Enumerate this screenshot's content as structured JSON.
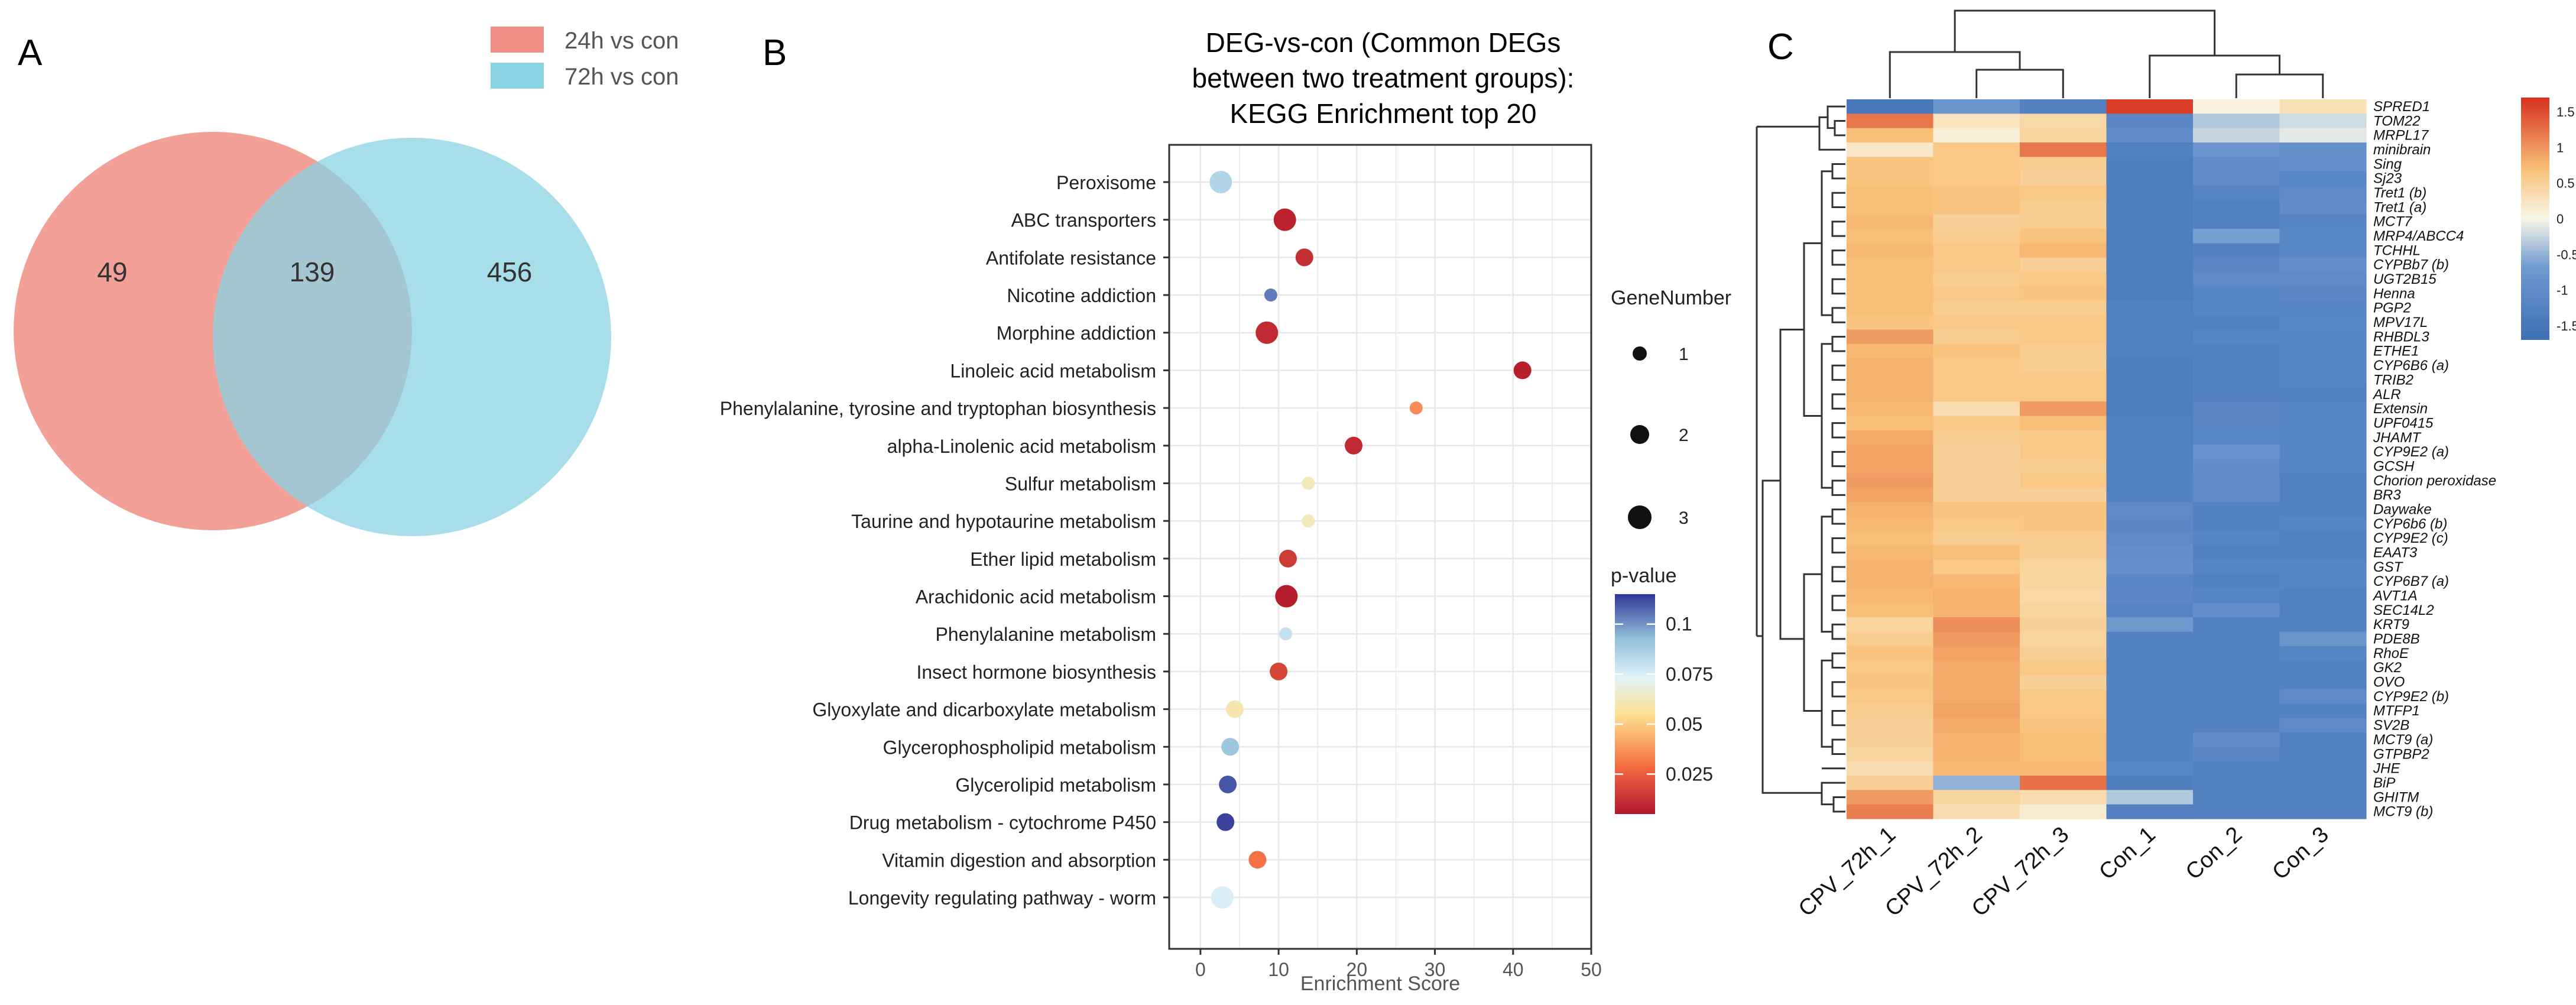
{
  "panels": {
    "A": {
      "label": "A",
      "legend": [
        {
          "name": "24h vs con",
          "color": "#f08f86"
        },
        {
          "name": "72h vs con",
          "color": "#8ad3e3"
        }
      ],
      "counts": {
        "only_left": "49",
        "intersection": "139",
        "only_right": "456"
      }
    },
    "B": {
      "label": "B"
    },
    "C": {
      "label": "C"
    }
  },
  "chart_data": [
    {
      "type": "venn",
      "sets": [
        "24h vs con",
        "72h vs con"
      ],
      "values": {
        "24h vs con only": 49,
        "both": 139,
        "72h vs con only": 456
      }
    },
    {
      "type": "scatter",
      "title": [
        "DEG-vs-con (Common DEGs",
        "between two treatment groups):",
        "KEGG Enrichment top 20"
      ],
      "xlabel": "Enrichment Score",
      "xlim": [
        -4,
        50
      ],
      "xticks": [
        0,
        10,
        20,
        30,
        40,
        50
      ],
      "size_legend": {
        "title": "GeneNumber",
        "values": [
          1,
          2,
          3
        ]
      },
      "color_legend": {
        "title": "p-value",
        "ticks": [
          "0.1",
          "0.075",
          "0.05",
          "0.025"
        ],
        "range": [
          0.005,
          0.115
        ]
      },
      "categories": [
        "Peroxisome",
        "ABC transporters",
        "Antifolate resistance",
        "Nicotine addiction",
        "Morphine addiction",
        "Linoleic acid metabolism",
        "Phenylalanine, tyrosine and tryptophan biosynthesis",
        "alpha-Linolenic acid metabolism",
        "Sulfur metabolism",
        "Taurine and hypotaurine metabolism",
        "Ether lipid metabolism",
        "Arachidonic acid metabolism",
        "Phenylalanine metabolism",
        "Insect hormone biosynthesis",
        "Glyoxylate and dicarboxylate metabolism",
        "Glycerophospholipid metabolism",
        "Glycerolipid metabolism",
        "Drug metabolism - cytochrome P450",
        "Vitamin digestion and absorption",
        "Longevity regulating pathway - worm"
      ],
      "points": [
        {
          "x": 2.6,
          "gene": 3,
          "p": 0.085
        },
        {
          "x": 10.8,
          "gene": 3,
          "p": 0.008
        },
        {
          "x": 13.3,
          "gene": 2,
          "p": 0.012
        },
        {
          "x": 9.0,
          "gene": 1,
          "p": 0.104
        },
        {
          "x": 8.5,
          "gene": 3,
          "p": 0.01
        },
        {
          "x": 41.2,
          "gene": 2,
          "p": 0.007
        },
        {
          "x": 27.6,
          "gene": 1,
          "p": 0.036
        },
        {
          "x": 19.6,
          "gene": 2,
          "p": 0.01
        },
        {
          "x": 13.8,
          "gene": 1,
          "p": 0.062
        },
        {
          "x": 13.8,
          "gene": 1,
          "p": 0.062
        },
        {
          "x": 11.2,
          "gene": 2,
          "p": 0.015
        },
        {
          "x": 11.0,
          "gene": 3,
          "p": 0.006
        },
        {
          "x": 10.9,
          "gene": 1,
          "p": 0.08
        },
        {
          "x": 10.0,
          "gene": 2,
          "p": 0.018
        },
        {
          "x": 4.4,
          "gene": 2,
          "p": 0.06
        },
        {
          "x": 3.8,
          "gene": 2,
          "p": 0.09
        },
        {
          "x": 3.5,
          "gene": 2,
          "p": 0.11
        },
        {
          "x": 3.2,
          "gene": 2,
          "p": 0.113
        },
        {
          "x": 7.3,
          "gene": 2,
          "p": 0.03
        },
        {
          "x": 2.8,
          "gene": 3,
          "p": 0.075
        }
      ]
    },
    {
      "type": "heatmap",
      "columns": [
        "CPV_72h_1",
        "CPV_72h_2",
        "CPV_72h_3",
        "Con_1",
        "Con_2",
        "Con_3"
      ],
      "rows": [
        "SPRED1",
        "TOM22",
        "MRPL17",
        "minibrain",
        "Sing",
        "Sj23",
        "Tret1 (b)",
        "Tret1 (a)",
        "MCT7",
        "MRP4/ABCC4",
        "TCHHL",
        "CYPBb7 (b)",
        "UGT2B15",
        "Henna",
        "PGP2",
        "MPV17L",
        "RHBDL3",
        "ETHE1",
        "CYP6B6 (a)",
        "TRIB2",
        "ALR",
        "Extensin",
        "UPF0415",
        "JHAMT",
        "CYP9E2 (a)",
        "GCSH",
        "Chorion peroxidase",
        "BR3",
        "Daywake",
        "CYP6b6 (b)",
        "CYP9E2 (c)",
        "EAAT3",
        "GST",
        "CYP6B7 (a)",
        "AVT1A",
        "SEC14L2",
        "KRT9",
        "PDE8B",
        "RhoE",
        "GK2",
        "OVO",
        "CYP9E2 (b)",
        "MTFP1",
        "SV2B",
        "MCT9 (a)",
        "GTPBP2",
        "JHE",
        "BiP",
        "GHITM",
        "MCT9 (b)"
      ],
      "values": [
        [
          -1.5,
          -0.8,
          -1.3,
          1.6,
          0.05,
          0.3
        ],
        [
          1.2,
          0.25,
          0.4,
          -1.1,
          -0.35,
          -0.2
        ],
        [
          0.7,
          0.1,
          0.45,
          -1.0,
          -0.25,
          -0.1
        ],
        [
          0.2,
          0.6,
          1.2,
          -1.3,
          -0.75,
          -0.9
        ],
        [
          0.65,
          0.6,
          0.55,
          -1.35,
          -1.0,
          -0.9
        ],
        [
          0.65,
          0.6,
          0.5,
          -1.35,
          -1.0,
          -1.15
        ],
        [
          0.7,
          0.65,
          0.6,
          -1.35,
          -1.2,
          -1.05
        ],
        [
          0.7,
          0.65,
          0.55,
          -1.35,
          -1.25,
          -1.0
        ],
        [
          0.75,
          0.5,
          0.55,
          -1.35,
          -1.25,
          -1.2
        ],
        [
          0.7,
          0.55,
          0.65,
          -1.35,
          -0.65,
          -1.15
        ],
        [
          0.75,
          0.6,
          0.75,
          -1.35,
          -1.25,
          -1.15
        ],
        [
          0.7,
          0.6,
          0.5,
          -1.35,
          -1.1,
          -0.95
        ],
        [
          0.7,
          0.55,
          0.6,
          -1.35,
          -1.05,
          -1.05
        ],
        [
          0.7,
          0.6,
          0.65,
          -1.35,
          -1.2,
          -1.1
        ],
        [
          0.7,
          0.55,
          0.55,
          -1.3,
          -1.2,
          -1.2
        ],
        [
          0.65,
          0.6,
          0.6,
          -1.25,
          -1.25,
          -1.15
        ],
        [
          0.95,
          0.55,
          0.6,
          -1.3,
          -1.2,
          -1.2
        ],
        [
          0.75,
          0.65,
          0.55,
          -1.3,
          -1.25,
          -1.2
        ],
        [
          0.8,
          0.6,
          0.55,
          -1.35,
          -1.25,
          -1.2
        ],
        [
          0.8,
          0.6,
          0.6,
          -1.35,
          -1.25,
          -1.2
        ],
        [
          0.8,
          0.6,
          0.6,
          -1.35,
          -1.25,
          -1.25
        ],
        [
          0.75,
          0.35,
          0.95,
          -1.35,
          -1.1,
          -1.2
        ],
        [
          0.7,
          0.6,
          0.7,
          -1.3,
          -1.1,
          -1.2
        ],
        [
          0.85,
          0.55,
          0.6,
          -1.3,
          -1.15,
          -1.2
        ],
        [
          0.9,
          0.5,
          0.6,
          -1.3,
          -0.85,
          -1.2
        ],
        [
          0.9,
          0.5,
          0.55,
          -1.3,
          -1.0,
          -1.2
        ],
        [
          0.95,
          0.5,
          0.6,
          -1.3,
          -1.05,
          -1.25
        ],
        [
          0.9,
          0.5,
          0.5,
          -1.3,
          -1.05,
          -1.25
        ],
        [
          0.8,
          0.65,
          0.65,
          -1.05,
          -1.25,
          -1.25
        ],
        [
          0.75,
          0.6,
          0.65,
          -1.1,
          -1.25,
          -1.2
        ],
        [
          0.7,
          0.55,
          0.55,
          -1.05,
          -1.2,
          -1.25
        ],
        [
          0.75,
          0.7,
          0.55,
          -0.95,
          -1.25,
          -1.25
        ],
        [
          0.8,
          0.6,
          0.45,
          -0.9,
          -1.2,
          -1.2
        ],
        [
          0.8,
          0.75,
          0.45,
          -1.15,
          -1.25,
          -1.2
        ],
        [
          0.75,
          0.8,
          0.4,
          -1.1,
          -1.2,
          -1.25
        ],
        [
          0.7,
          0.8,
          0.45,
          -1.2,
          -0.95,
          -1.25
        ],
        [
          0.45,
          1.05,
          0.5,
          -0.7,
          -1.25,
          -1.25
        ],
        [
          0.55,
          0.95,
          0.45,
          -1.25,
          -1.25,
          -0.8
        ],
        [
          0.65,
          0.9,
          0.5,
          -1.25,
          -1.25,
          -1.2
        ],
        [
          0.6,
          0.85,
          0.6,
          -1.25,
          -1.25,
          -1.25
        ],
        [
          0.65,
          0.85,
          0.5,
          -1.25,
          -1.25,
          -1.25
        ],
        [
          0.6,
          0.85,
          0.6,
          -1.25,
          -1.25,
          -1.05
        ],
        [
          0.55,
          0.9,
          0.6,
          -1.25,
          -1.25,
          -1.25
        ],
        [
          0.5,
          0.85,
          0.65,
          -1.25,
          -1.25,
          -1.05
        ],
        [
          0.5,
          0.8,
          0.7,
          -1.25,
          -1.0,
          -1.25
        ],
        [
          0.45,
          0.8,
          0.7,
          -1.25,
          -1.1,
          -1.25
        ],
        [
          0.35,
          0.75,
          0.75,
          -1.15,
          -1.25,
          -1.25
        ],
        [
          0.5,
          -0.5,
          1.25,
          -1.35,
          -1.3,
          -1.3
        ],
        [
          0.95,
          0.45,
          0.35,
          -0.35,
          -1.25,
          -1.25
        ],
        [
          1.15,
          0.35,
          0.15,
          -1.3,
          -1.25,
          -1.25
        ]
      ],
      "colorbar": {
        "ticks": [
          "1.5",
          "1",
          "0.5",
          "0",
          "-0.5",
          "-1",
          "-1.5"
        ],
        "range": [
          -1.7,
          1.7
        ]
      }
    }
  ]
}
